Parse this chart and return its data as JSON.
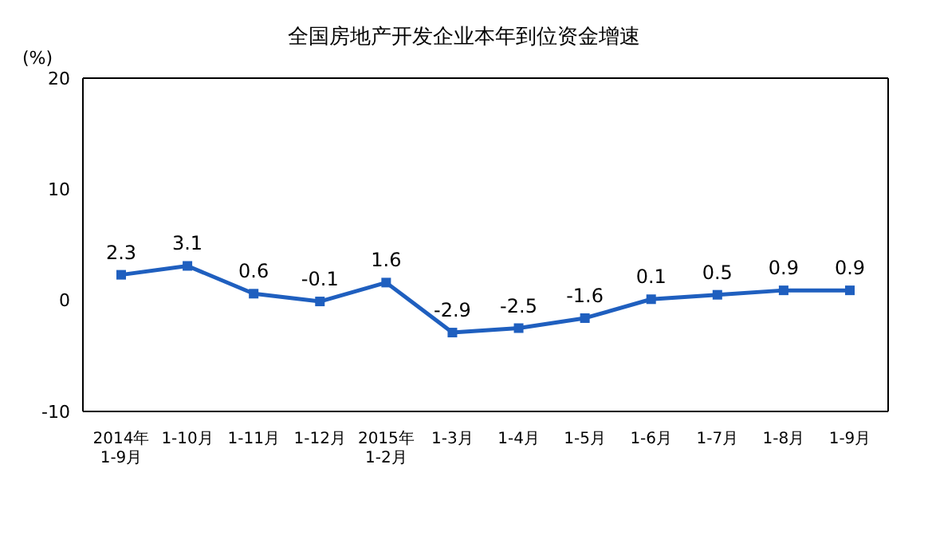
{
  "chart_data": {
    "type": "line",
    "title": "全国房地产开发企业本年到位资金增速",
    "ylabel": "(%)",
    "categories": [
      "2014年\n1-9月",
      "1-10月",
      "1-11月",
      "1-12月",
      "2015年\n1-2月",
      "1-3月",
      "1-4月",
      "1-5月",
      "1-6月",
      "1-7月",
      "1-8月",
      "1-9月"
    ],
    "series": [
      {
        "color": "#1f5fbf",
        "values": [
          2.3,
          3.1,
          0.6,
          -0.1,
          1.6,
          -2.9,
          -2.5,
          -1.6,
          0.1,
          0.5,
          0.9,
          0.9
        ]
      }
    ],
    "ylim": [
      -10,
      20
    ],
    "yticks": [
      -10,
      0,
      10,
      20
    ],
    "marker": "square",
    "line_style": "solid",
    "data_labels": true
  }
}
